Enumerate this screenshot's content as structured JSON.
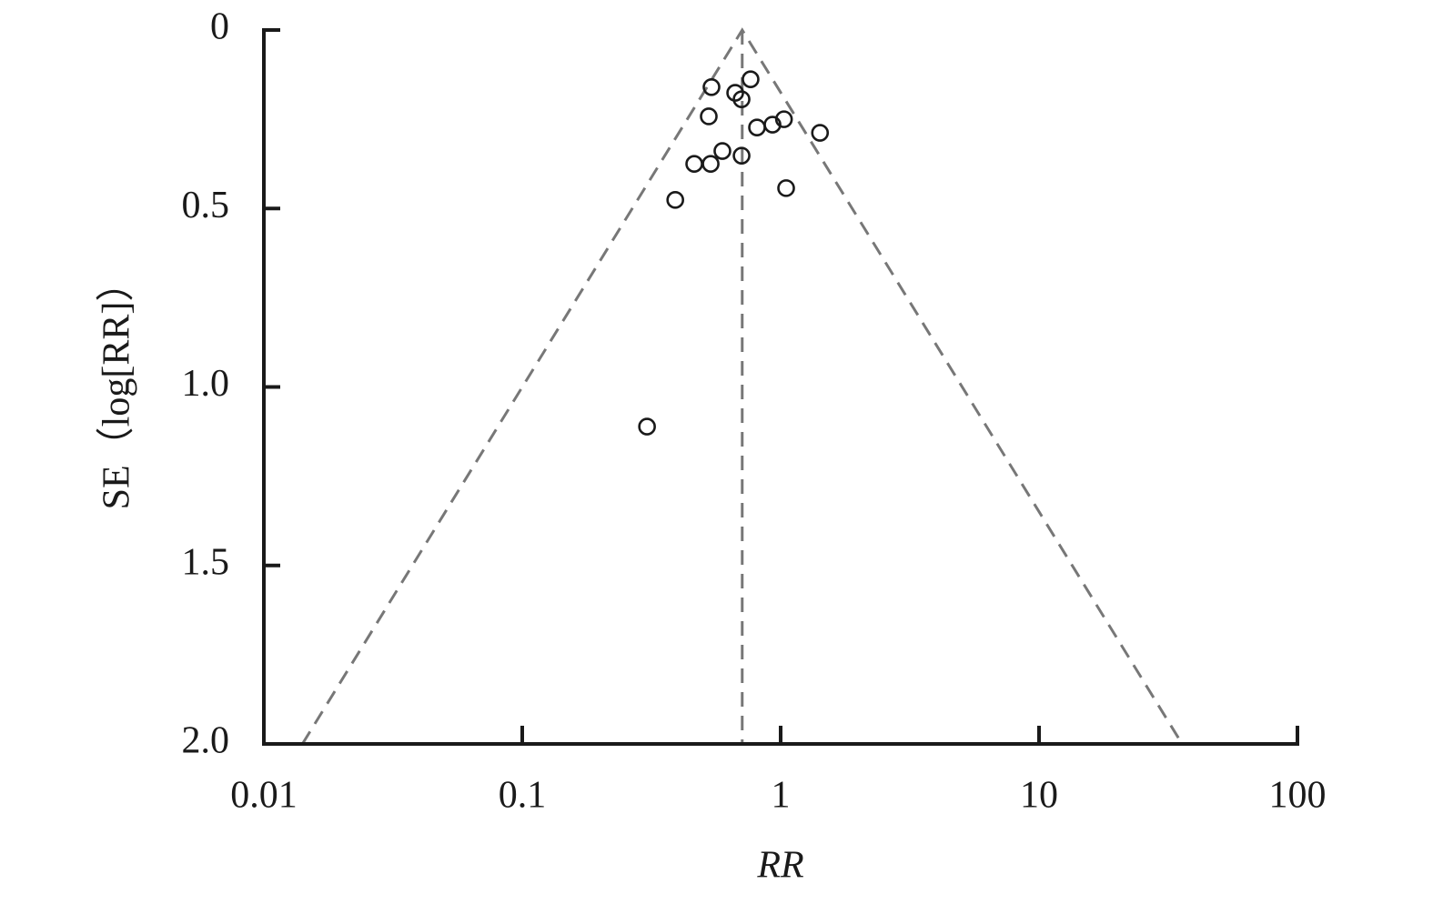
{
  "chart_data": {
    "type": "scatter",
    "xlabel": "RR",
    "ylabel": "SE（log[RR]）",
    "x_log": true,
    "y_inverted": true,
    "xlim": [
      0.01,
      100
    ],
    "xticks": [
      0.01,
      0.1,
      1,
      10,
      100
    ],
    "ylim": [
      0,
      2
    ],
    "yticks": [
      0,
      0.5,
      {
        "value": 1,
        "label": "1.0"
      },
      1.5,
      {
        "value": 2,
        "label": "2.0"
      }
    ],
    "marker_color": "#1a1a1a",
    "line_color": "#777777",
    "series": [
      {
        "x": [
          0.54,
          0.765,
          0.667,
          0.706,
          0.527,
          1.03,
          0.93,
          0.81,
          1.42,
          0.595,
          0.706,
          0.463,
          0.536,
          1.05,
          0.391,
          0.304
        ],
        "values": [
          0.16,
          0.138,
          0.176,
          0.194,
          0.242,
          0.25,
          0.265,
          0.273,
          0.288,
          0.339,
          0.352,
          0.375,
          0.375,
          0.443,
          0.476,
          1.111
        ]
      }
    ],
    "funnel": {
      "x": [
        0.0141,
        0.71,
        35.8
      ],
      "values": [
        2,
        0,
        2
      ]
    },
    "center_line": {
      "x": [
        0.71,
        0.71
      ],
      "values": [
        0,
        2
      ]
    }
  }
}
